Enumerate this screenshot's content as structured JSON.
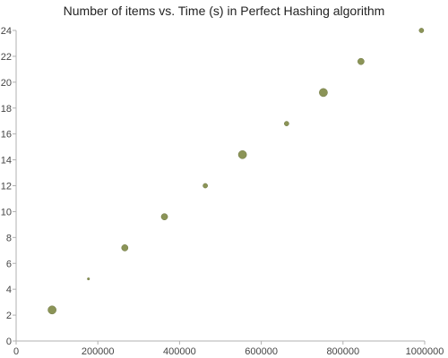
{
  "chart_data": {
    "type": "scatter",
    "title": "Number of items vs. Time (s) in Perfect Hashing algorithm",
    "xlabel": "",
    "ylabel": "",
    "xlim": [
      0,
      1000000
    ],
    "ylim": [
      0,
      24
    ],
    "x_ticks": [
      0,
      200000,
      400000,
      600000,
      800000,
      1000000
    ],
    "y_ticks": [
      0,
      2,
      4,
      6,
      8,
      10,
      12,
      14,
      16,
      18,
      20,
      22,
      24
    ],
    "grid": false,
    "legend": "none",
    "marker_color": "#8b9457",
    "points": [
      {
        "x": 88000,
        "y": 2.4,
        "size": "large"
      },
      {
        "x": 177000,
        "y": 4.8,
        "size": "tiny"
      },
      {
        "x": 266000,
        "y": 7.2,
        "size": "medium"
      },
      {
        "x": 363000,
        "y": 9.6,
        "size": "medium"
      },
      {
        "x": 463000,
        "y": 12.0,
        "size": "small"
      },
      {
        "x": 554000,
        "y": 14.4,
        "size": "large"
      },
      {
        "x": 662000,
        "y": 16.8,
        "size": "small"
      },
      {
        "x": 752000,
        "y": 19.2,
        "size": "large"
      },
      {
        "x": 844000,
        "y": 21.6,
        "size": "medium"
      },
      {
        "x": 992000,
        "y": 24.0,
        "size": "small"
      }
    ]
  }
}
